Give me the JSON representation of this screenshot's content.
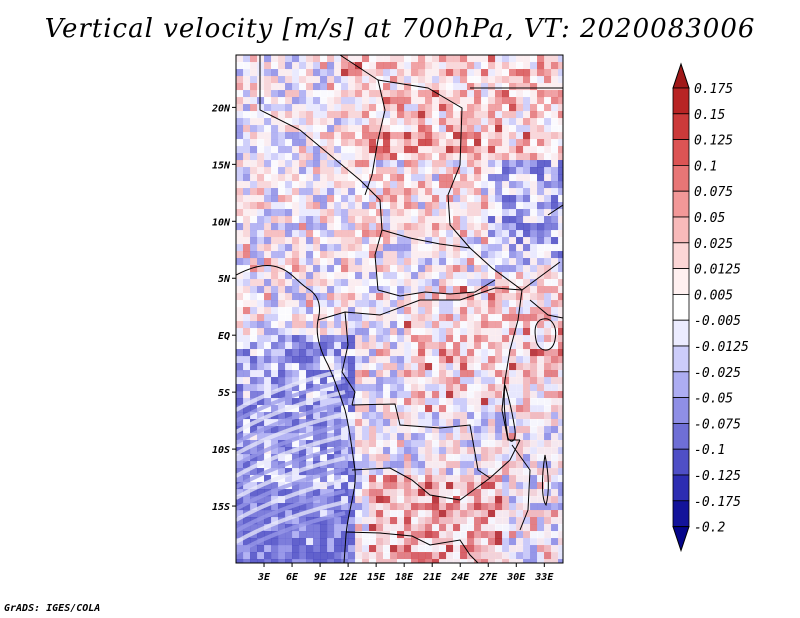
{
  "title": "Vertical velocity [m/s] at 700hPa, VT: 2020083006",
  "credit": "GrADS: IGES/COLA",
  "map": {
    "lat_labels": [
      "20N",
      "15N",
      "10N",
      "5N",
      "EQ",
      "5S",
      "10S",
      "15S"
    ],
    "lat_values": [
      20,
      15,
      10,
      5,
      0,
      -5,
      -10,
      -15
    ],
    "lon_labels": [
      "3E",
      "6E",
      "9E",
      "12E",
      "15E",
      "18E",
      "21E",
      "24E",
      "27E",
      "30E",
      "33E"
    ],
    "lon_values": [
      3,
      6,
      9,
      12,
      15,
      18,
      21,
      24,
      27,
      30,
      33
    ],
    "lon_range": [
      0,
      35
    ],
    "lat_range": [
      -20,
      24.6
    ]
  },
  "colorbar": {
    "levels": [
      "0.175",
      "0.15",
      "0.125",
      "0.1",
      "0.075",
      "0.05",
      "0.025",
      "0.0125",
      "0.005",
      "-0.005",
      "-0.0125",
      "-0.025",
      "-0.05",
      "-0.075",
      "-0.1",
      "-0.125",
      "-0.175",
      "-0.2"
    ],
    "colors": [
      "#a01919",
      "#b82424",
      "#cc3a3a",
      "#dc5454",
      "#e87676",
      "#f29898",
      "#f8baba",
      "#fcd6d6",
      "#fff0f0",
      "#ffffff",
      "#ececff",
      "#cdcdfa",
      "#adadf2",
      "#8f8fe6",
      "#6f6fd6",
      "#4f4fc6",
      "#2d2db2",
      "#13139a",
      "#05058a"
    ]
  }
}
